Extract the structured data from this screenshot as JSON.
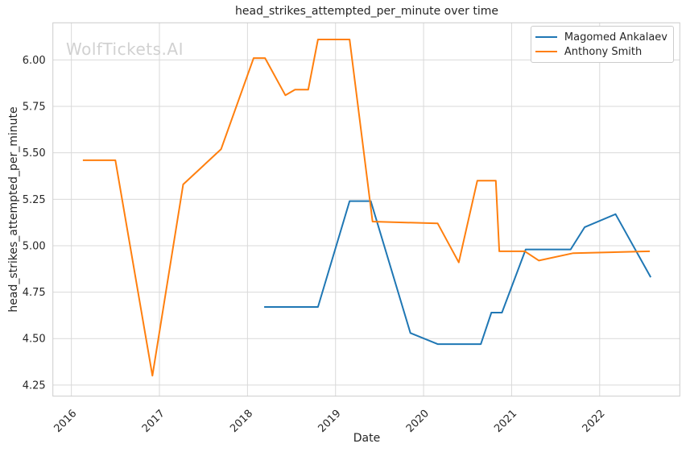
{
  "chart_data": {
    "type": "line",
    "title": "head_strikes_attempted_per_minute over time",
    "xlabel": "Date",
    "ylabel": "head_strikes_attempted_per_minute",
    "watermark": "WolfTickets.AI",
    "grid": true,
    "legend_position": "upper right",
    "xlim": [
      2015.79,
      2022.91
    ],
    "ylim": [
      4.19,
      6.2
    ],
    "x_ticks": {
      "values": [
        2016,
        2017,
        2018,
        2019,
        2020,
        2021,
        2022
      ],
      "labels": [
        "2016",
        "2017",
        "2018",
        "2019",
        "2020",
        "2021",
        "2022"
      ],
      "rotation": 45
    },
    "y_ticks": {
      "values": [
        4.25,
        4.5,
        4.75,
        5.0,
        5.25,
        5.5,
        5.75,
        6.0
      ],
      "labels": [
        "4.25",
        "4.50",
        "4.75",
        "5.00",
        "5.25",
        "5.50",
        "5.75",
        "6.00"
      ]
    },
    "colors": {
      "grid": "#d9d9d9",
      "spine": "#cccccc",
      "text": "#262626",
      "watermark": "#d1d1d1",
      "background": "#ffffff"
    },
    "series": [
      {
        "name": "Magomed Ankalaev",
        "color": "#1f77b4",
        "points": [
          [
            2018.19,
            4.67
          ],
          [
            2018.8,
            4.67
          ],
          [
            2019.16,
            5.24
          ],
          [
            2019.4,
            5.24
          ],
          [
            2019.85,
            4.53
          ],
          [
            2020.16,
            4.47
          ],
          [
            2020.65,
            4.47
          ],
          [
            2020.77,
            4.64
          ],
          [
            2020.89,
            4.64
          ],
          [
            2021.16,
            4.98
          ],
          [
            2021.67,
            4.98
          ],
          [
            2021.83,
            5.1
          ],
          [
            2022.18,
            5.17
          ],
          [
            2022.58,
            4.83
          ]
        ]
      },
      {
        "name": "Anthony Smith",
        "color": "#ff7f0e",
        "points": [
          [
            2016.13,
            5.46
          ],
          [
            2016.5,
            5.46
          ],
          [
            2016.92,
            4.3
          ],
          [
            2017.27,
            5.33
          ],
          [
            2017.7,
            5.52
          ],
          [
            2018.07,
            6.01
          ],
          [
            2018.2,
            6.01
          ],
          [
            2018.43,
            5.81
          ],
          [
            2018.54,
            5.84
          ],
          [
            2018.69,
            5.84
          ],
          [
            2018.8,
            6.11
          ],
          [
            2019.16,
            6.11
          ],
          [
            2019.42,
            5.13
          ],
          [
            2020.16,
            5.12
          ],
          [
            2020.4,
            4.91
          ],
          [
            2020.61,
            5.35
          ],
          [
            2020.82,
            5.35
          ],
          [
            2020.86,
            4.97
          ],
          [
            2021.15,
            4.97
          ],
          [
            2021.31,
            4.92
          ],
          [
            2021.7,
            4.96
          ],
          [
            2022.57,
            4.97
          ]
        ]
      }
    ]
  }
}
